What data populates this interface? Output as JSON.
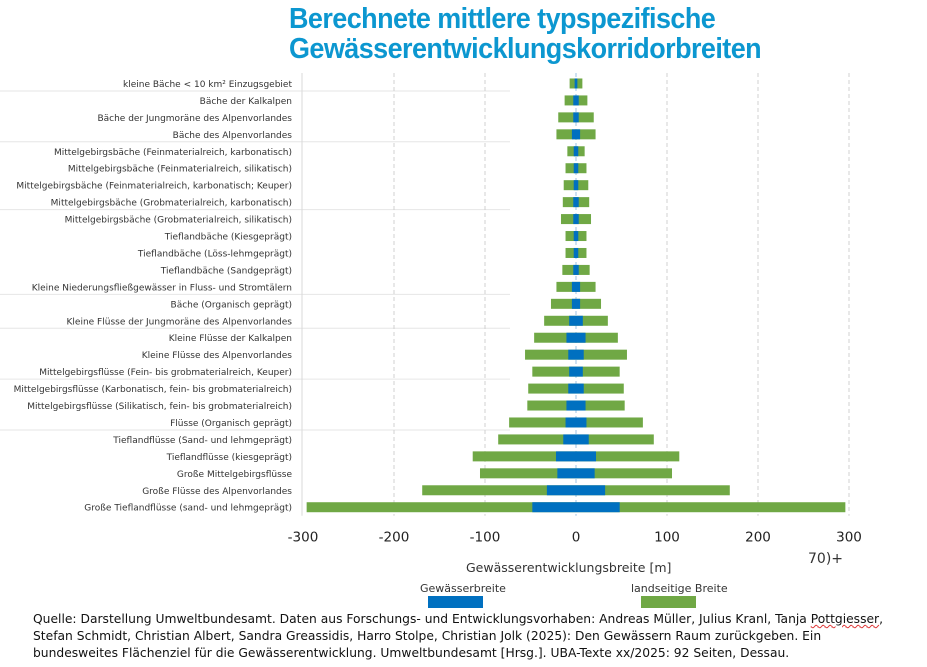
{
  "title": {
    "line1": "Berechnete mittlere typspezifische",
    "line2": "Gewässerentwicklungskorridorbreiten",
    "color": "#0c97d0"
  },
  "chart_data": {
    "type": "bar",
    "orientation": "horizontal-diverging-stacked",
    "title": "Berechnete mittlere typspezifische Gewässerentwicklungskorridorbreiten",
    "xlabel": "Gewässerentwicklungsbreite [m]",
    "ylabel": "",
    "xlim": [
      -300,
      300
    ],
    "xticks": [
      -300,
      -200,
      -100,
      0,
      100,
      200,
      300
    ],
    "xtick_labels": [
      "-300",
      "-200",
      "-100",
      "0",
      "100",
      "200",
      "300"
    ],
    "grid": "vertical dashed",
    "legend_position": "bottom",
    "colors": {
      "water": "#0070c0",
      "land": "#70a845"
    },
    "categories": [
      "kleine Bäche < 10  km² Einzugsgebiet",
      "Bäche der Kalkalpen",
      "Bäche der Jungmoräne des Alpenvorlandes",
      "Bäche des Alpenvorlandes",
      "Mittelgebirgsbäche (Feinmaterialreich, karbonatisch)",
      "Mittelgebirgsbäche (Feinmaterialreich, silikatisch)",
      "Mittelgebirgsbäche (Feinmaterialreich, karbonatisch; Keuper)",
      "Mittelgebirgsbäche (Grobmaterialreich, karbonatisch)",
      "Mittelgebirgsbäche (Grobmaterialreich, silikatisch)",
      "Tieflandbäche (Kiesgeprägt)",
      "Tieflandbäche (Löss-lehmgeprägt)",
      "Tieflandbäche (Sandgeprägt)",
      "Kleine Niederungsfließgewässer in Fluss- und Stromtälern",
      "Bäche (Organisch geprägt)",
      "Kleine Flüsse der Jungmoräne des Alpenvorlandes",
      "Kleine Flüsse der Kalkalpen",
      "Kleine Flüsse des Alpenvorlandes",
      "Mittelgebirgsflüsse (Fein- bis grobmaterialreich, Keuper)",
      "Mittelgebirgsflüsse (Karbonatisch, fein- bis grobmaterialreich)",
      "Mittelgebirgsflüsse (Silikatisch, fein- bis grobmaterialreich)",
      "Flüsse (Organisch geprägt)",
      "Tieflandflüsse (Sand- und lehmgeprägt)",
      "Tieflandflüsse (kiesgeprägt)",
      "Große Mittelgebirgsflüsse",
      "Große Flüsse des Alpenvorlandes",
      "Große Tieflandflüsse (sand- und lehmgeprägt)"
    ],
    "series": [
      {
        "name": "Gewässerbreite",
        "note": "half-width of water body on each side of 0 (m)",
        "values": [
          1.5,
          3,
          3,
          4.5,
          2.5,
          2.5,
          2.5,
          3,
          3,
          2.5,
          2.5,
          3,
          4.5,
          4.5,
          7.5,
          10.5,
          8.5,
          7.5,
          8.5,
          10.5,
          11.5,
          14,
          22,
          20.5,
          32,
          48
        ]
      },
      {
        "name": "landseitige Breite",
        "note": "total corridor half-width on each side of 0 (m), including water",
        "values": [
          7,
          12.5,
          19.5,
          21.5,
          9.5,
          11.5,
          13.5,
          14.5,
          16.5,
          11.5,
          11.5,
          15,
          21.5,
          27.5,
          35,
          46,
          56,
          48,
          52.5,
          53.5,
          73.5,
          85.5,
          113.5,
          105.5,
          169,
          296
        ]
      }
    ]
  },
  "axis": {
    "xlabel": "Gewässerentwicklungsbreite [m]",
    "stray_text": "70)+"
  },
  "legend": {
    "water_label": "Gewässerbreite",
    "land_label": "landseitige Breite"
  },
  "source": {
    "line1_a": "Quelle: Darstellung Umweltbundesamt. Daten aus Forschungs- und Entwicklungsvorhaben: Andreas Müller, Julius Kranl, Tanja ",
    "line1_err": "Pottgiesser",
    "line1_b": ",",
    "line2": "Stefan Schmidt, Christian Albert, Sandra Greassidis, Harro Stolpe, Christian Jolk (2025): Den Gewässern Raum zurückgeben. Ein",
    "line3": "bundesweites Flächenziel für die Gewässerentwicklung. Umweltbundesamt [Hrsg.]. UBA-Texte xx/2025: 92 Seiten, Dessau."
  }
}
